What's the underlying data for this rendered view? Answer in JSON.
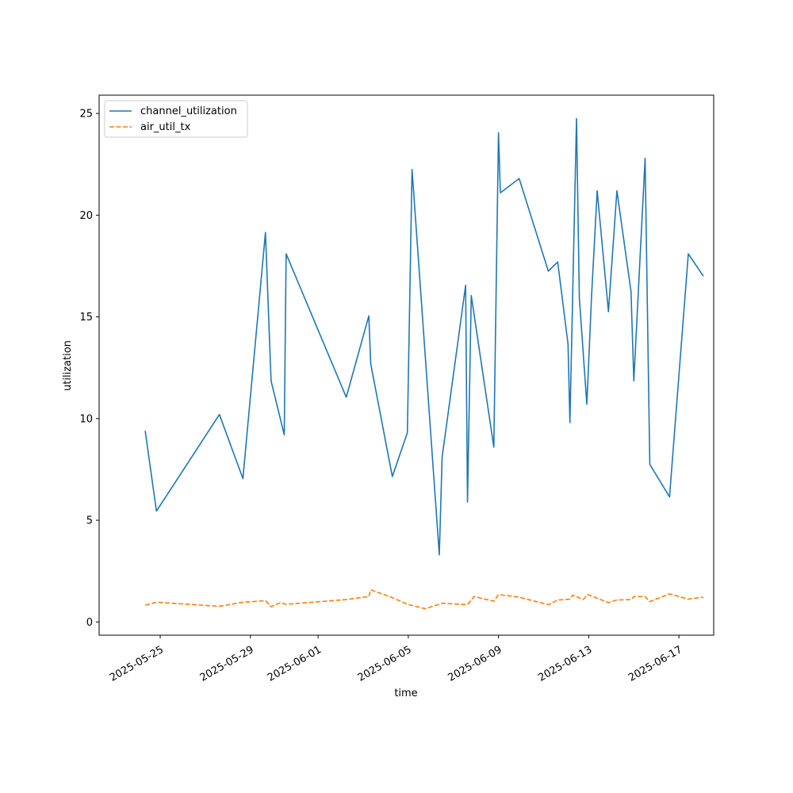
{
  "chart_data": {
    "type": "line",
    "title": "",
    "xlabel": "time",
    "ylabel": "utilization",
    "x_type": "date",
    "xlim": [
      "2025-05-22T07:00",
      "2025-06-18T13:00"
    ],
    "ylim": [
      -0.65,
      25.9
    ],
    "x_ticks": [
      "2025-05-25",
      "2025-05-29",
      "2025-06-01",
      "2025-06-05",
      "2025-06-09",
      "2025-06-13",
      "2025-06-17"
    ],
    "y_ticks": [
      0,
      5,
      10,
      15,
      20,
      25
    ],
    "grid": false,
    "legend_position": "upper-left",
    "series": [
      {
        "name": "channel_utilization",
        "color": "#1f77b4",
        "dash": "solid",
        "points": [
          [
            "2025-05-24T08:00",
            9.4
          ],
          [
            "2025-05-24T20:00",
            5.45
          ],
          [
            "2025-05-27T15:00",
            10.2
          ],
          [
            "2025-05-28T16:00",
            7.05
          ],
          [
            "2025-05-29T16:00",
            19.15
          ],
          [
            "2025-05-29T22:00",
            11.85
          ],
          [
            "2025-05-30T12:00",
            9.2
          ],
          [
            "2025-05-30T14:00",
            18.1
          ],
          [
            "2025-06-02T06:00",
            11.05
          ],
          [
            "2025-06-03T06:00",
            15.05
          ],
          [
            "2025-06-03T08:00",
            12.7
          ],
          [
            "2025-06-04T07:00",
            7.15
          ],
          [
            "2025-06-04T23:00",
            9.3
          ],
          [
            "2025-06-05T04:00",
            22.25
          ],
          [
            "2025-06-06T09:00",
            3.3
          ],
          [
            "2025-06-06T12:00",
            8.1
          ],
          [
            "2025-06-07T13:00",
            16.55
          ],
          [
            "2025-06-07T15:00",
            5.9
          ],
          [
            "2025-06-07T19:00",
            16.05
          ],
          [
            "2025-06-08T19:00",
            8.6
          ],
          [
            "2025-06-08T22:00",
            17.9
          ],
          [
            "2025-06-09T00:00",
            24.05
          ],
          [
            "2025-06-09T02:00",
            21.1
          ],
          [
            "2025-06-09T22:00",
            21.8
          ],
          [
            "2025-06-11T05:00",
            17.25
          ],
          [
            "2025-06-11T15:00",
            17.7
          ],
          [
            "2025-06-12T02:00",
            13.65
          ],
          [
            "2025-06-12T04:00",
            9.8
          ],
          [
            "2025-06-12T07:00",
            16.25
          ],
          [
            "2025-06-12T11:00",
            24.75
          ],
          [
            "2025-06-12T14:00",
            15.95
          ],
          [
            "2025-06-12T22:00",
            10.7
          ],
          [
            "2025-06-13T03:00",
            16.0
          ],
          [
            "2025-06-13T09:00",
            21.2
          ],
          [
            "2025-06-13T21:00",
            15.25
          ],
          [
            "2025-06-14T06:00",
            21.2
          ],
          [
            "2025-06-14T21:00",
            16.25
          ],
          [
            "2025-06-15T00:00",
            11.85
          ],
          [
            "2025-06-15T12:00",
            22.8
          ],
          [
            "2025-06-15T17:00",
            7.75
          ],
          [
            "2025-06-16T14:00",
            6.15
          ],
          [
            "2025-06-17T10:00",
            18.1
          ],
          [
            "2025-06-18T02:00",
            17.0
          ]
        ]
      },
      {
        "name": "air_util_tx",
        "color": "#ff7f0e",
        "dash": "dashed",
        "points": [
          [
            "2025-05-24T08:00",
            0.82
          ],
          [
            "2025-05-24T20:00",
            0.97
          ],
          [
            "2025-05-27T15:00",
            0.77
          ],
          [
            "2025-05-28T16:00",
            0.97
          ],
          [
            "2025-05-29T16:00",
            1.05
          ],
          [
            "2025-05-29T22:00",
            0.75
          ],
          [
            "2025-05-30T08:00",
            0.95
          ],
          [
            "2025-05-30T14:00",
            0.87
          ],
          [
            "2025-06-02T06:00",
            1.1
          ],
          [
            "2025-06-03T06:00",
            1.25
          ],
          [
            "2025-06-03T08:00",
            1.58
          ],
          [
            "2025-06-04T07:00",
            1.2
          ],
          [
            "2025-06-04T23:00",
            0.87
          ],
          [
            "2025-06-05T18:00",
            0.65
          ],
          [
            "2025-06-06T12:00",
            0.92
          ],
          [
            "2025-06-07T15:00",
            0.85
          ],
          [
            "2025-06-07T22:00",
            1.25
          ],
          [
            "2025-06-08T19:00",
            1.02
          ],
          [
            "2025-06-09T00:00",
            1.35
          ],
          [
            "2025-06-09T22:00",
            1.22
          ],
          [
            "2025-06-11T05:00",
            0.85
          ],
          [
            "2025-06-11T15:00",
            1.08
          ],
          [
            "2025-06-12T04:00",
            1.12
          ],
          [
            "2025-06-12T07:00",
            1.32
          ],
          [
            "2025-06-12T18:00",
            1.1
          ],
          [
            "2025-06-12T23:00",
            1.35
          ],
          [
            "2025-06-13T21:00",
            0.95
          ],
          [
            "2025-06-14T06:00",
            1.08
          ],
          [
            "2025-06-14T21:00",
            1.1
          ],
          [
            "2025-06-15T00:00",
            1.25
          ],
          [
            "2025-06-15T12:00",
            1.25
          ],
          [
            "2025-06-15T17:00",
            1.0
          ],
          [
            "2025-06-16T14:00",
            1.38
          ],
          [
            "2025-06-17T10:00",
            1.12
          ],
          [
            "2025-06-18T02:00",
            1.22
          ]
        ]
      }
    ]
  }
}
